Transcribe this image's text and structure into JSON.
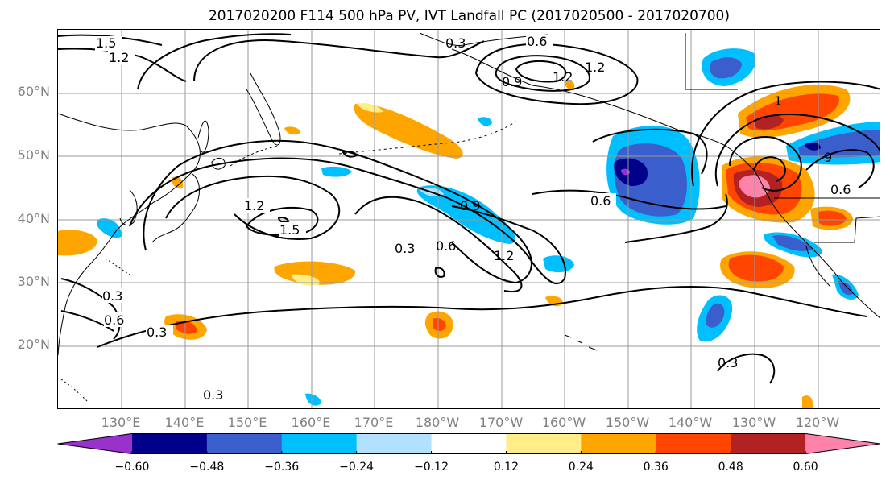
{
  "title": "2017020200 F114 500 hPa PV, IVT Landfall PC (2017020500 - 2017020700)",
  "lat_labels": [
    "60°N",
    "50°N",
    "40°N",
    "30°N",
    "20°N"
  ],
  "lon_labels": [
    "130°E",
    "140°E",
    "150°E",
    "160°E",
    "170°E",
    "180°W",
    "170°W",
    "160°W",
    "150°W",
    "140°W",
    "130°W",
    "120°W"
  ],
  "contour_labels": {
    "c15_nw": "1.5",
    "c12_nw": "1.2",
    "c03_n": "0.3",
    "c06_n": "0.6",
    "c12_ne": "1.2",
    "c09_ne": "0.9",
    "c12_n2": "1.2",
    "c12_jet": "1.2",
    "c15_jet": "1.5",
    "c03_mid": "0.3",
    "c06_mid": "0.6",
    "c09_mid": "0.9",
    "c12_mid": "1.2",
    "c06_east": "0.6",
    "c03_w": "0.3",
    "c06_w": "0.6",
    "c03_sw": "0.3",
    "c03_s": "0.3",
    "c03_se": "0.3",
    "c1_e": "1",
    "c09_e": "9",
    "c06_e2": "0.6"
  },
  "colorbar": {
    "ticks": [
      "−0.60",
      "−0.48",
      "−0.36",
      "−0.24",
      "−0.12",
      "0.12",
      "0.24",
      "0.36",
      "0.48",
      "0.60"
    ],
    "colors": [
      "#9932cc",
      "#00008b",
      "#3a5fcd",
      "#00bfff",
      "#b2e1ff",
      "#ffffff",
      "#ffee88",
      "#ffa500",
      "#ff4500",
      "#b22222",
      "#ff82ab"
    ]
  }
}
